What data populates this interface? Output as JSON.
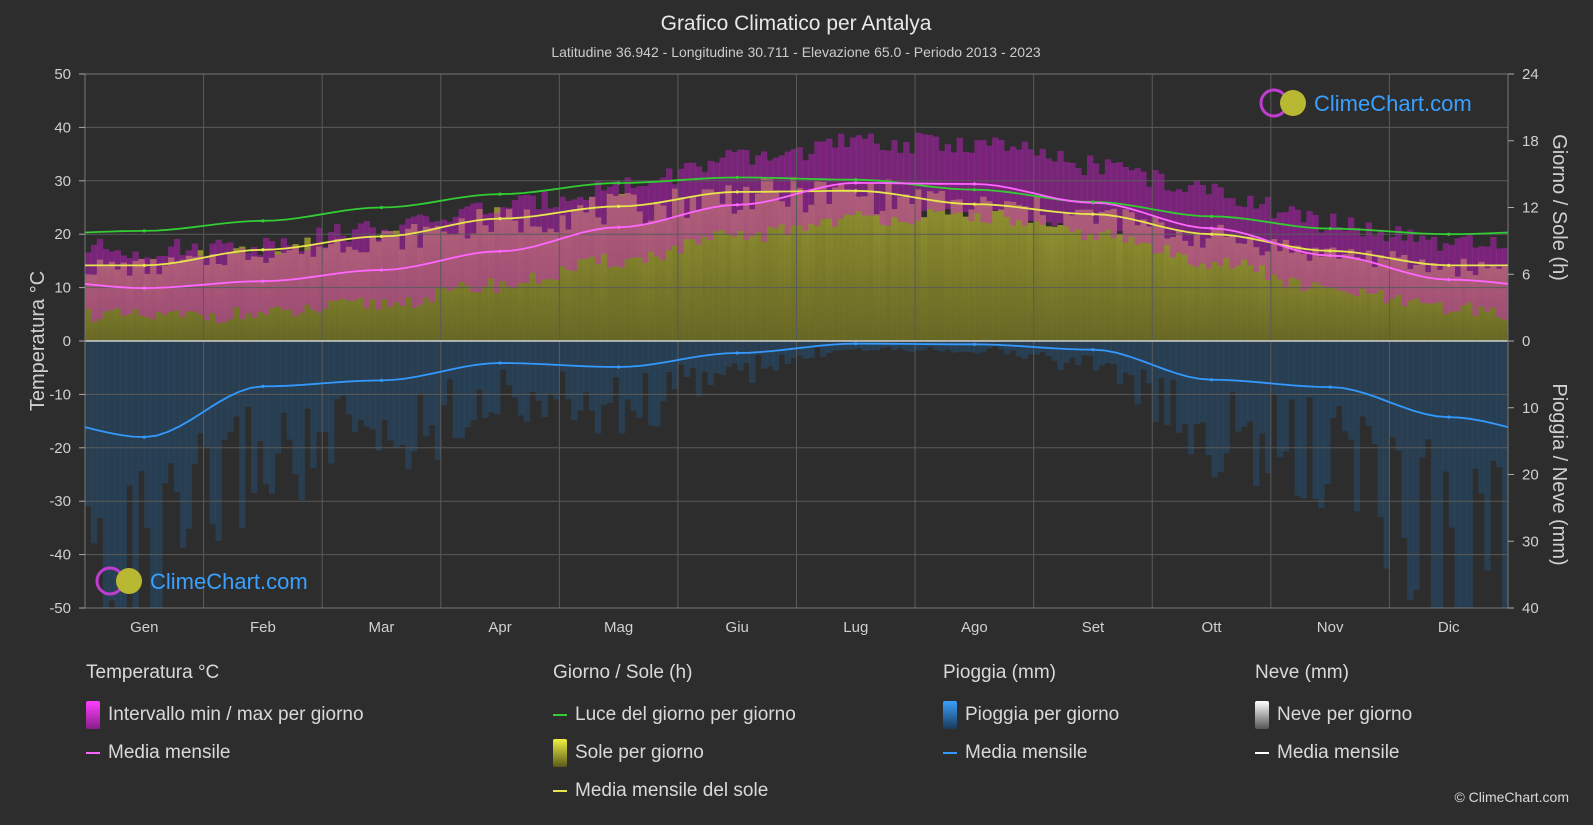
{
  "header": {
    "title": "Grafico Climatico per Antalya",
    "subtitle": "Latitudine 36.942 - Longitudine 30.711 - Elevazione 65.0 - Periodo 2013 - 2023"
  },
  "logo_text": "ClimeChart.com",
  "copyright": "© ClimeChart.com",
  "colors": {
    "background": "#2d2d2d",
    "temp_range": "#d21ed2",
    "temp_mean": "#ff66ff",
    "daylight": "#33cc33",
    "sunshine_fill": "#8a8a2a",
    "sunshine_mean": "#e6e64d",
    "rain": "#2070b0",
    "rain_mean": "#3399ff",
    "snow_mean": "#ffffff"
  },
  "chart_data": {
    "type": "area",
    "months": [
      "Gen",
      "Feb",
      "Mar",
      "Apr",
      "Mag",
      "Giu",
      "Lug",
      "Ago",
      "Set",
      "Ott",
      "Nov",
      "Dic"
    ],
    "axes": {
      "left": {
        "label": "Temperatura °C",
        "ticks": [
          "50",
          "40",
          "30",
          "20",
          "10",
          "0",
          "-10",
          "-20",
          "-30",
          "-40",
          "-50"
        ],
        "range": [
          -50,
          50
        ]
      },
      "right_top": {
        "label": "Giorno / Sole (h)",
        "ticks": [
          "24",
          "18",
          "12",
          "6",
          "0"
        ],
        "range": [
          0,
          24
        ]
      },
      "right_bottom": {
        "label": "Pioggia / Neve (mm)",
        "ticks": [
          "0",
          "10",
          "20",
          "30",
          "40"
        ],
        "range": [
          0,
          40
        ]
      }
    },
    "grid": true,
    "series": [
      {
        "name": "Intervallo min / max per giorno",
        "kind": "range",
        "unit": "°C",
        "min": [
          5,
          5.5,
          7.5,
          11,
          15.5,
          20,
          23.5,
          24,
          20.5,
          15.5,
          10,
          6.5
        ],
        "max": [
          16,
          17,
          20,
          24,
          28,
          33,
          36,
          36,
          32,
          27,
          21,
          17
        ]
      },
      {
        "name": "Media mensile",
        "kind": "temp_mean",
        "unit": "°C",
        "values": [
          9.9,
          11.2,
          13.3,
          16.8,
          21.3,
          25.5,
          29.6,
          29.4,
          25.9,
          21.1,
          16.0,
          11.5
        ]
      },
      {
        "name": "Luce del giorno per giorno",
        "kind": "daylight",
        "unit": "h",
        "values": [
          9.9,
          10.8,
          12.0,
          13.2,
          14.2,
          14.7,
          14.5,
          13.6,
          12.5,
          11.2,
          10.1,
          9.6
        ]
      },
      {
        "name": "Media mensile del sole",
        "kind": "sunshine_mean",
        "unit": "h",
        "values": [
          6.8,
          8.2,
          9.4,
          11.0,
          12.1,
          13.4,
          13.5,
          12.3,
          11.4,
          9.6,
          8.1,
          6.8
        ]
      },
      {
        "name": "Media mensile",
        "kind": "rain_mean",
        "unit": "mm",
        "values": [
          14.4,
          6.8,
          5.9,
          3.3,
          3.9,
          1.8,
          0.4,
          0.5,
          1.3,
          5.8,
          6.9,
          11.4
        ]
      },
      {
        "name": "Media mensile",
        "kind": "snow_mean",
        "unit": "mm",
        "values": [
          0,
          0,
          0,
          0,
          0,
          0,
          0,
          0,
          0,
          0,
          0,
          0
        ]
      }
    ]
  },
  "legend": {
    "groups": [
      {
        "title": "Temperatura °C",
        "items": [
          {
            "label": "Intervallo min / max per giorno",
            "swatch": "box",
            "color": "#d21ed2"
          },
          {
            "label": "Media mensile",
            "swatch": "line",
            "color": "#ff66ff"
          }
        ]
      },
      {
        "title": "Giorno / Sole (h)",
        "items": [
          {
            "label": "Luce del giorno per giorno",
            "swatch": "line",
            "color": "#33cc33"
          },
          {
            "label": "Sole per giorno",
            "swatch": "box",
            "color": "#c8c832"
          },
          {
            "label": "Media mensile del sole",
            "swatch": "line",
            "color": "#e6e64d"
          }
        ]
      },
      {
        "title": "Pioggia (mm)",
        "items": [
          {
            "label": "Pioggia per giorno",
            "swatch": "box",
            "color": "#2f86d6"
          },
          {
            "label": "Media mensile",
            "swatch": "line",
            "color": "#3399ff"
          }
        ]
      },
      {
        "title": "Neve (mm)",
        "items": [
          {
            "label": "Neve per giorno",
            "swatch": "box",
            "color": "#dddddd"
          },
          {
            "label": "Media mensile",
            "swatch": "line",
            "color": "#ffffff"
          }
        ]
      }
    ]
  }
}
